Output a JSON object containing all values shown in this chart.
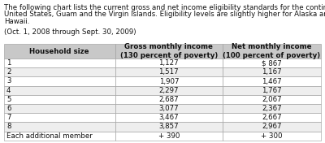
{
  "intro_line1": "The following chart lists the current gross and net income eligibility standards for the continental",
  "intro_line2": "United States, Guam and the Virgin Islands. Eligibility levels are slightly higher for Alaska and",
  "intro_line3": "Hawaii.",
  "date_range": "(Oct. 1, 2008 through Sept. 30, 2009)",
  "col_headers": [
    "Household size",
    "Gross monthly income\n(130 percent of poverty)",
    "Net monthly income\n(100 percent of poverty)"
  ],
  "rows": [
    [
      "1",
      "1,127",
      "$ 867"
    ],
    [
      "2",
      "1,517",
      "1,167"
    ],
    [
      "3",
      "1,907",
      "1,467"
    ],
    [
      "4",
      "2,297",
      "1,767"
    ],
    [
      "5",
      "2,687",
      "2,067"
    ],
    [
      "6",
      "3,077",
      "2,367"
    ],
    [
      "7",
      "3,467",
      "2,667"
    ],
    [
      "8",
      "3,857",
      "2,967"
    ],
    [
      "Each additional member",
      "+ 390",
      "+ 300"
    ]
  ],
  "header_bg": "#c8c8c8",
  "row_bg_odd": "#ffffff",
  "row_bg_even": "#eeeeee",
  "text_color": "#111111",
  "border_color": "#999999",
  "intro_fontsize": 6.2,
  "table_fontsize": 6.2,
  "header_fontsize": 6.2,
  "fig_width": 4.0,
  "fig_height": 1.76,
  "dpi": 100
}
